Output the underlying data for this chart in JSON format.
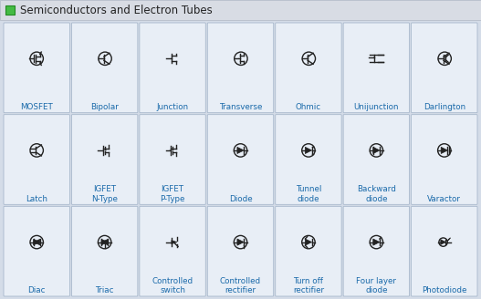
{
  "title": "Semiconductors and Electron Tubes",
  "bg_color": "#d4dce8",
  "cell_bg": "#e8eef6",
  "cell_border": "#a8b8cc",
  "header_bg": "#d0d8e4",
  "label_color": "#1a6aaa",
  "title_color": "#222222",
  "symbol_color": "#222222",
  "rows": 3,
  "cols": 7,
  "labels": [
    [
      "MOSFET",
      "Bipolar",
      "Junction",
      "Transverse",
      "Ohmic",
      "Unijunction",
      "Darlington"
    ],
    [
      "Latch",
      "IGFET\nN-Type",
      "IGFET\nP-Type",
      "Diode",
      "Tunnel\ndiode",
      "Backward\ndiode",
      "Varactor"
    ],
    [
      "Diac",
      "Triac",
      "Controlled\nswitch",
      "Controlled\nrectifier",
      "Turn off\nrectifier",
      "Four layer\ndiode",
      "Photodiode"
    ]
  ]
}
